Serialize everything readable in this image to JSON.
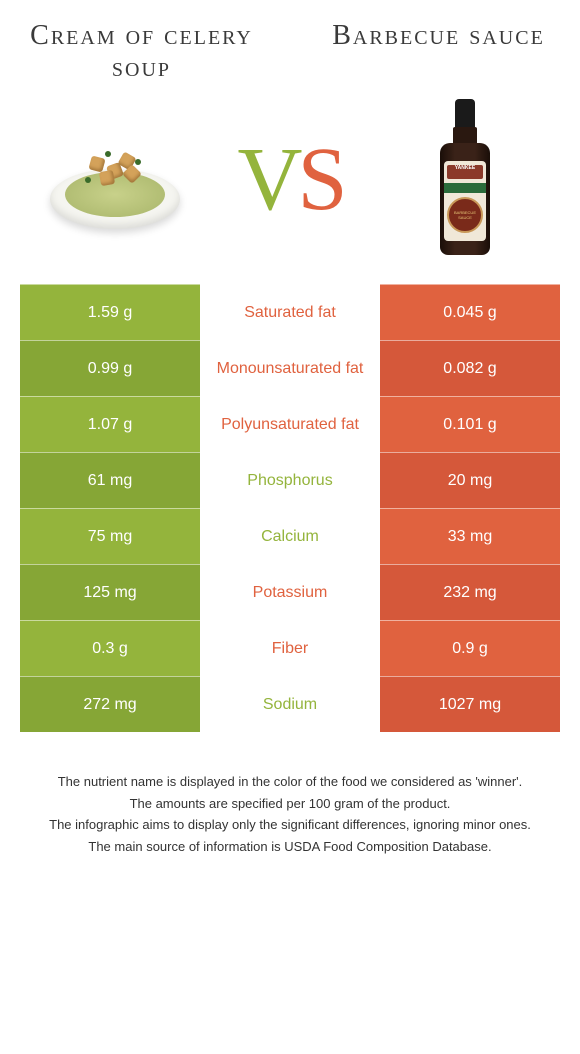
{
  "titles": {
    "left": "Cream of celery soup",
    "right": "Barbecue sauce"
  },
  "vs": {
    "v": "V",
    "s": "S"
  },
  "colors": {
    "left": "#94b43c",
    "left_alt": "#86a636",
    "right": "#e0623f",
    "right_alt": "#d5583a",
    "background": "#ffffff"
  },
  "rows": [
    {
      "label": "Saturated fat",
      "left": "1.59 g",
      "right": "0.045 g",
      "winner": "right"
    },
    {
      "label": "Monounsaturated fat",
      "left": "0.99 g",
      "right": "0.082 g",
      "winner": "right"
    },
    {
      "label": "Polyunsaturated fat",
      "left": "1.07 g",
      "right": "0.101 g",
      "winner": "right"
    },
    {
      "label": "Phosphorus",
      "left": "61 mg",
      "right": "20 mg",
      "winner": "left"
    },
    {
      "label": "Calcium",
      "left": "75 mg",
      "right": "33 mg",
      "winner": "left"
    },
    {
      "label": "Potassium",
      "left": "125 mg",
      "right": "232 mg",
      "winner": "right"
    },
    {
      "label": "Fiber",
      "left": "0.3 g",
      "right": "0.9 g",
      "winner": "right"
    },
    {
      "label": "Sodium",
      "left": "272 mg",
      "right": "1027 mg",
      "winner": "left"
    }
  ],
  "footer": [
    "The nutrient name is displayed in the color of the food we considered as 'winner'.",
    "The amounts are specified per 100 gram of the product.",
    "The infographic aims to display only the significant differences, ignoring minor ones.",
    "The main source of information is USDA Food Composition Database."
  ],
  "bottle_label": {
    "brand_top": "YANKEE",
    "main": "BARBECUE SAUCE"
  }
}
